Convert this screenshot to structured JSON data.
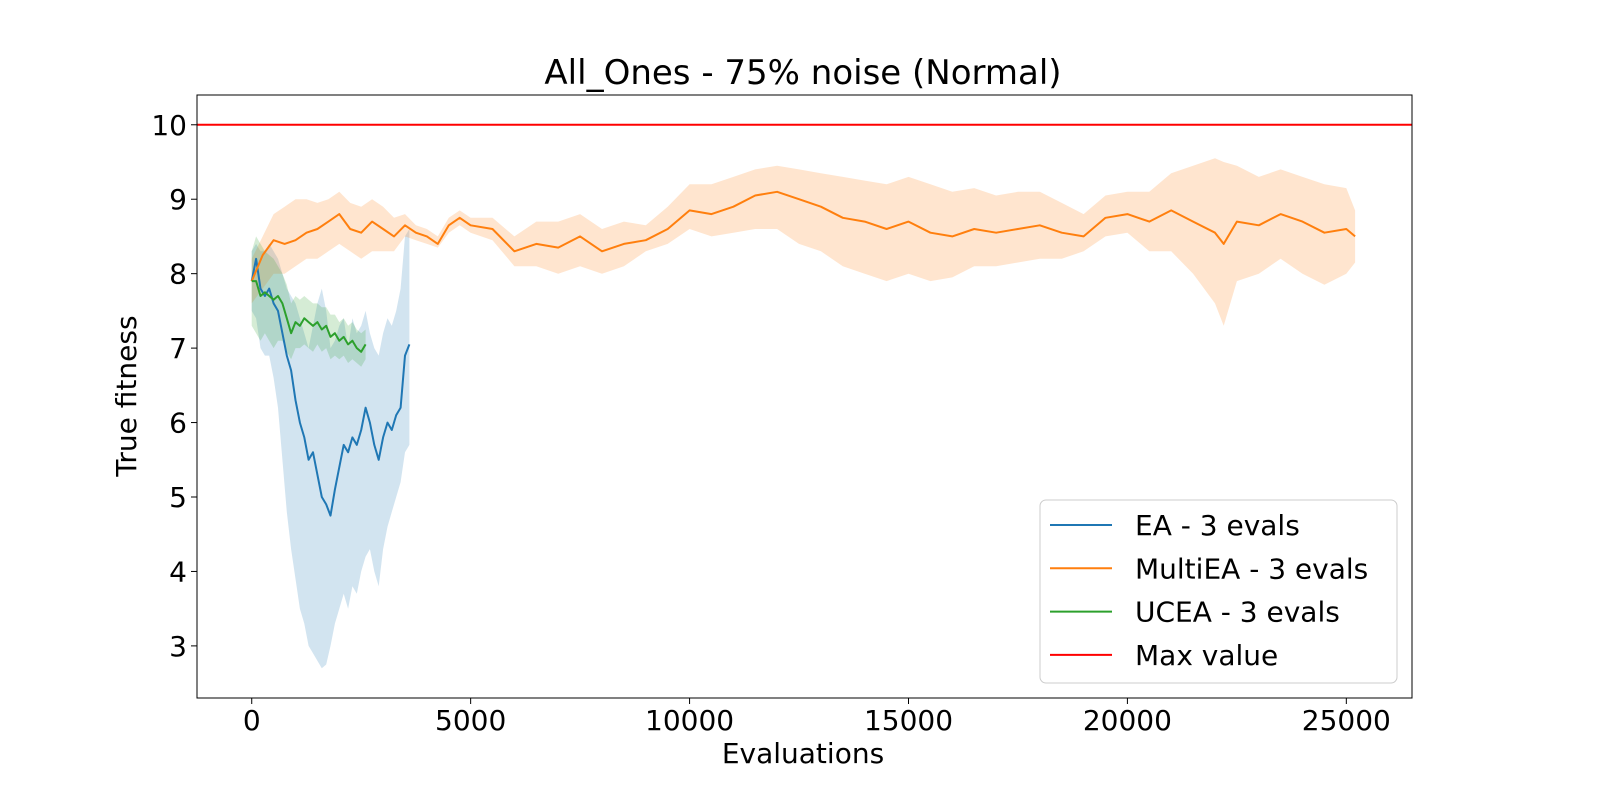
{
  "chart_data": {
    "type": "line",
    "title": "All_Ones - 75% noise (Normal)",
    "xlabel": "Evaluations",
    "ylabel": "True fitness",
    "xlim": [
      -1250,
      26500
    ],
    "ylim": [
      2.3,
      10.4
    ],
    "xticks": [
      0,
      5000,
      10000,
      15000,
      20000,
      25000
    ],
    "yticks": [
      3,
      4,
      5,
      6,
      7,
      8,
      9,
      10
    ],
    "grid": false,
    "legend_position": "lower-right",
    "colors": {
      "ea": "#1f77b4",
      "multiea": "#ff7f0e",
      "ucea": "#2ca02c",
      "max": "#ff0000"
    },
    "series": [
      {
        "name": "EA - 3 evals",
        "color": "#1f77b4",
        "x": [
          0,
          100,
          200,
          300,
          400,
          500,
          600,
          700,
          800,
          900,
          1000,
          1100,
          1200,
          1300,
          1400,
          1500,
          1600,
          1700,
          1800,
          1900,
          2000,
          2100,
          2200,
          2300,
          2400,
          2500,
          2600,
          2700,
          2800,
          2900,
          3000,
          3100,
          3200,
          3300,
          3400,
          3500,
          3600
        ],
        "y": [
          7.9,
          8.2,
          7.8,
          7.7,
          7.8,
          7.6,
          7.5,
          7.2,
          6.9,
          6.7,
          6.3,
          6.0,
          5.8,
          5.5,
          5.6,
          5.3,
          5.0,
          4.9,
          4.75,
          5.1,
          5.4,
          5.7,
          5.6,
          5.8,
          5.7,
          5.9,
          6.2,
          6.0,
          5.7,
          5.5,
          5.8,
          6.0,
          5.9,
          6.1,
          6.2,
          6.9,
          7.05
        ],
        "lower": [
          7.5,
          7.4,
          7.0,
          6.9,
          6.9,
          6.6,
          6.2,
          5.5,
          4.8,
          4.3,
          3.9,
          3.5,
          3.3,
          3.0,
          2.9,
          2.8,
          2.7,
          2.75,
          3.0,
          3.3,
          3.5,
          3.7,
          3.5,
          3.8,
          3.7,
          4.0,
          4.2,
          4.3,
          4.0,
          3.8,
          4.3,
          4.6,
          4.8,
          5.0,
          5.2,
          5.6,
          5.7
        ],
        "upper": [
          8.3,
          8.4,
          8.3,
          8.3,
          8.4,
          8.3,
          8.2,
          8.0,
          7.8,
          7.7,
          7.6,
          7.4,
          7.2,
          7.0,
          7.3,
          7.6,
          7.8,
          7.5,
          7.0,
          7.1,
          7.3,
          7.4,
          7.0,
          7.4,
          7.2,
          7.3,
          7.5,
          7.2,
          7.0,
          6.9,
          7.2,
          7.4,
          7.3,
          7.5,
          7.8,
          8.5,
          8.6
        ]
      },
      {
        "name": "MultiEA - 3 evals",
        "color": "#ff7f0e",
        "x": [
          0,
          250,
          500,
          750,
          1000,
          1250,
          1500,
          1750,
          2000,
          2250,
          2500,
          2750,
          3000,
          3250,
          3500,
          3750,
          4000,
          4250,
          4500,
          4750,
          5000,
          5500,
          6000,
          6500,
          7000,
          7500,
          8000,
          8500,
          9000,
          9500,
          10000,
          10500,
          11000,
          11500,
          12000,
          12500,
          13000,
          13500,
          14000,
          14500,
          15000,
          15500,
          16000,
          16500,
          17000,
          17500,
          18000,
          18500,
          19000,
          19500,
          20000,
          20500,
          21000,
          21500,
          22000,
          22200,
          22500,
          23000,
          23500,
          24000,
          24500,
          25000,
          25200
        ],
        "y": [
          7.9,
          8.25,
          8.45,
          8.4,
          8.45,
          8.55,
          8.6,
          8.7,
          8.8,
          8.6,
          8.55,
          8.7,
          8.6,
          8.5,
          8.65,
          8.55,
          8.5,
          8.4,
          8.65,
          8.75,
          8.65,
          8.6,
          8.3,
          8.4,
          8.35,
          8.5,
          8.3,
          8.4,
          8.45,
          8.6,
          8.85,
          8.8,
          8.9,
          9.05,
          9.1,
          9.0,
          8.9,
          8.75,
          8.7,
          8.6,
          8.7,
          8.55,
          8.5,
          8.6,
          8.55,
          8.6,
          8.65,
          8.55,
          8.5,
          8.75,
          8.8,
          8.7,
          8.85,
          8.7,
          8.55,
          8.4,
          8.7,
          8.65,
          8.8,
          8.7,
          8.55,
          8.6,
          8.5
        ],
        "lower": [
          7.6,
          7.8,
          8.0,
          8.0,
          8.1,
          8.2,
          8.2,
          8.3,
          8.4,
          8.3,
          8.2,
          8.3,
          8.3,
          8.3,
          8.5,
          8.45,
          8.4,
          8.35,
          8.55,
          8.65,
          8.55,
          8.45,
          8.1,
          8.1,
          8.0,
          8.1,
          8.0,
          8.1,
          8.3,
          8.4,
          8.6,
          8.5,
          8.55,
          8.6,
          8.6,
          8.4,
          8.3,
          8.1,
          8.0,
          7.9,
          8.0,
          7.9,
          7.95,
          8.1,
          8.1,
          8.15,
          8.2,
          8.2,
          8.3,
          8.5,
          8.55,
          8.3,
          8.3,
          8.0,
          7.6,
          7.3,
          7.9,
          8.0,
          8.2,
          8.0,
          7.85,
          8.0,
          8.15
        ],
        "upper": [
          8.2,
          8.5,
          8.8,
          8.9,
          9.0,
          9.0,
          8.95,
          9.0,
          9.1,
          8.95,
          8.9,
          9.0,
          8.9,
          8.75,
          8.8,
          8.65,
          8.6,
          8.5,
          8.75,
          8.85,
          8.75,
          8.75,
          8.5,
          8.7,
          8.7,
          8.8,
          8.6,
          8.7,
          8.65,
          8.9,
          9.2,
          9.2,
          9.3,
          9.4,
          9.45,
          9.4,
          9.35,
          9.3,
          9.25,
          9.2,
          9.3,
          9.2,
          9.1,
          9.15,
          9.05,
          9.1,
          9.1,
          8.95,
          8.8,
          9.05,
          9.1,
          9.1,
          9.35,
          9.45,
          9.55,
          9.5,
          9.45,
          9.3,
          9.4,
          9.3,
          9.2,
          9.15,
          8.85
        ]
      },
      {
        "name": "UCEA - 3 evals",
        "color": "#2ca02c",
        "x": [
          0,
          100,
          200,
          300,
          400,
          500,
          600,
          700,
          800,
          900,
          1000,
          1100,
          1200,
          1300,
          1400,
          1500,
          1600,
          1700,
          1800,
          1900,
          2000,
          2100,
          2200,
          2300,
          2400,
          2500,
          2600
        ],
        "y": [
          7.9,
          7.9,
          7.7,
          7.75,
          7.7,
          7.65,
          7.7,
          7.6,
          7.4,
          7.2,
          7.35,
          7.3,
          7.4,
          7.35,
          7.3,
          7.35,
          7.25,
          7.3,
          7.15,
          7.2,
          7.1,
          7.15,
          7.05,
          7.1,
          7.0,
          6.95,
          7.05
        ],
        "lower": [
          7.3,
          7.2,
          7.1,
          7.2,
          7.1,
          7.0,
          7.1,
          7.1,
          6.95,
          6.85,
          7.0,
          7.0,
          7.05,
          7.0,
          6.95,
          7.05,
          6.95,
          7.0,
          6.85,
          6.9,
          6.85,
          6.9,
          6.8,
          6.85,
          6.8,
          6.75,
          6.85
        ],
        "upper": [
          8.3,
          8.5,
          8.4,
          8.3,
          8.25,
          8.2,
          8.1,
          8.0,
          7.85,
          7.6,
          7.7,
          7.65,
          7.7,
          7.65,
          7.6,
          7.6,
          7.55,
          7.55,
          7.45,
          7.45,
          7.35,
          7.4,
          7.3,
          7.35,
          7.25,
          7.2,
          7.25
        ]
      },
      {
        "name": "Max value",
        "color": "#ff0000",
        "x": [
          -1250,
          26500
        ],
        "y": [
          10,
          10
        ]
      }
    ]
  }
}
